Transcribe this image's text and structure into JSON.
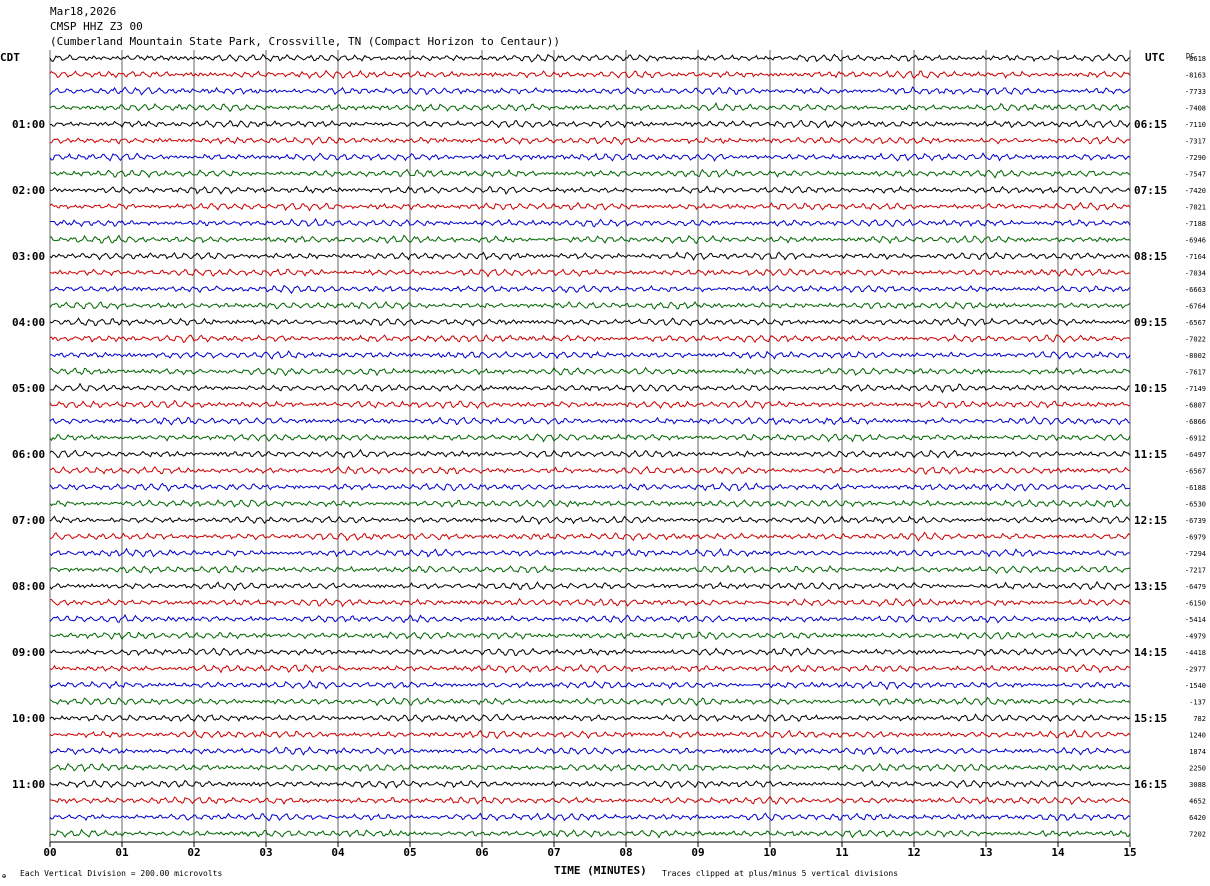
{
  "header": {
    "date": "Mar18,2026",
    "station": "CMSP HHZ Z3 00",
    "location": "(Cumberland Mountain State Park, Crossville, TN (Compact Horizon to Centaur))"
  },
  "labels": {
    "left_tz": "CDT",
    "right_tz": "UTC",
    "dc": "DC",
    "xlabel": "TIME (MINUTES)",
    "footer_left": "Each Vertical Division =  200.00 microvolts",
    "footer_right": "Traces clipped at plus/minus 5 vertical divisions",
    "corner_mark": "✠"
  },
  "colors": {
    "trace_cycle": [
      "#000000",
      "#cc0000",
      "#0000cc",
      "#006600"
    ],
    "grid": "#000000"
  },
  "chart_data": {
    "type": "line",
    "title": "CMSP HHZ Z3 00",
    "xlabel": "TIME (MINUTES)",
    "xlim": [
      0,
      15
    ],
    "x_ticks": [
      "00",
      "01",
      "02",
      "03",
      "04",
      "05",
      "06",
      "07",
      "08",
      "09",
      "10",
      "11",
      "12",
      "13",
      "14",
      "15"
    ],
    "left_time_labels": [
      {
        "row": 4,
        "label": "01:00"
      },
      {
        "row": 8,
        "label": "02:00"
      },
      {
        "row": 12,
        "label": "03:00"
      },
      {
        "row": 16,
        "label": "04:00"
      },
      {
        "row": 20,
        "label": "05:00"
      },
      {
        "row": 24,
        "label": "06:00"
      },
      {
        "row": 28,
        "label": "07:00"
      },
      {
        "row": 32,
        "label": "08:00"
      },
      {
        "row": 36,
        "label": "09:00"
      },
      {
        "row": 40,
        "label": "10:00"
      },
      {
        "row": 44,
        "label": "11:00"
      }
    ],
    "right_time_labels": [
      {
        "row": 4,
        "label": "06:15"
      },
      {
        "row": 8,
        "label": "07:15"
      },
      {
        "row": 12,
        "label": "08:15"
      },
      {
        "row": 16,
        "label": "09:15"
      },
      {
        "row": 20,
        "label": "10:15"
      },
      {
        "row": 24,
        "label": "11:15"
      },
      {
        "row": 28,
        "label": "12:15"
      },
      {
        "row": 32,
        "label": "13:15"
      },
      {
        "row": 36,
        "label": "14:15"
      },
      {
        "row": 40,
        "label": "15:15"
      },
      {
        "row": 44,
        "label": "16:15"
      }
    ],
    "dc_offsets": [
      "-8618",
      "-8163",
      "-7733",
      "-7408",
      "-7110",
      "-7317",
      "-7290",
      "-7547",
      "-7420",
      "-7021",
      "-7188",
      "-6946",
      "-7164",
      "-7034",
      "-6663",
      "-6764",
      "-6567",
      "-7022",
      "-8002",
      "-7617",
      "-7149",
      "-6807",
      "-6866",
      "-6912",
      "-6497",
      "-6567",
      "-6188",
      "-6530",
      "-6739",
      "-6979",
      "-7294",
      "-7217",
      "-6479",
      "-6150",
      "-5414",
      "-4979",
      "-4418",
      "-2977",
      "-1540",
      "-137",
      "782",
      "1240",
      "1874",
      "2250",
      "3088",
      "4652",
      "6420",
      "7202"
    ],
    "series_count": 48,
    "minutes_per_row": 15,
    "vertical_division_microvolts": 200.0,
    "clip_divisions": 5
  }
}
